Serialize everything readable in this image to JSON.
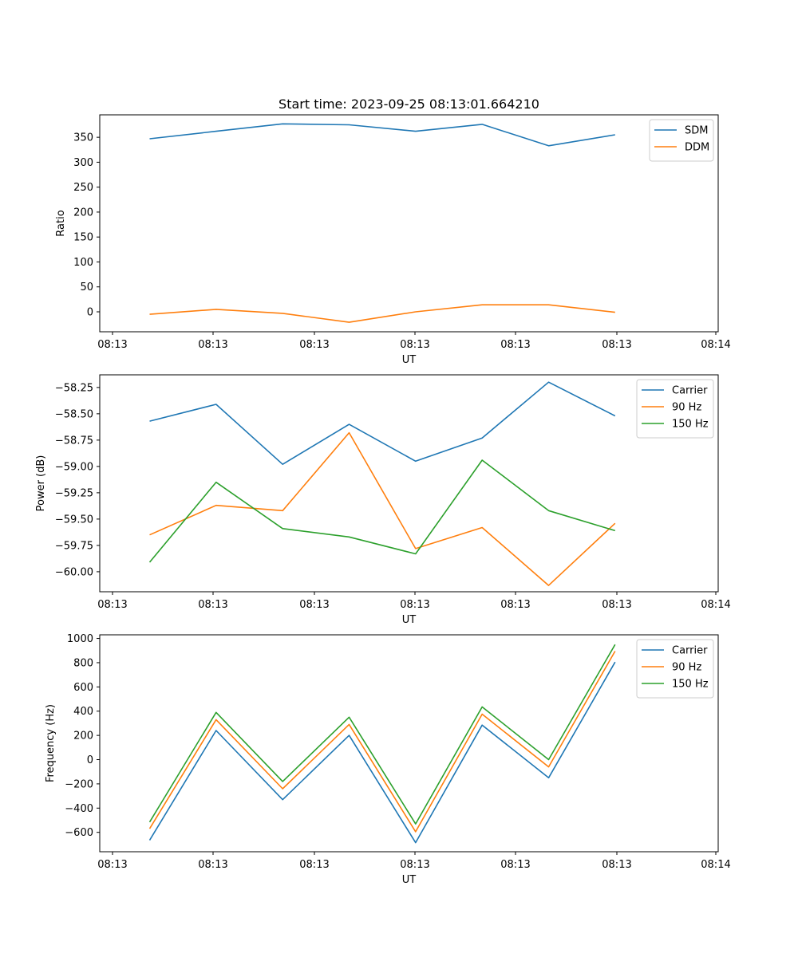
{
  "title": "Start time: 2023-09-25 08:13:01.664210",
  "colors": {
    "c1": "#1f77b4",
    "c2": "#ff7f0e",
    "c3": "#2ca02c"
  },
  "x_tick_labels": [
    "08:13",
    "08:13",
    "08:13",
    "08:13",
    "08:13",
    "08:13",
    "08:14"
  ],
  "chart_data": [
    {
      "type": "line",
      "xlabel": "UT",
      "ylabel": "Ratio",
      "x": [
        0,
        1,
        2,
        3,
        4,
        5,
        6,
        7
      ],
      "xlim": [
        -0.75,
        8.55
      ],
      "ylim": [
        -40,
        395
      ],
      "yticks": [
        0,
        50,
        100,
        150,
        200,
        250,
        300,
        350
      ],
      "series": [
        {
          "name": "SDM",
          "values": [
            347,
            362,
            377,
            375,
            362,
            376,
            333,
            355
          ]
        },
        {
          "name": "DDM",
          "values": [
            -5,
            5,
            -3,
            -21,
            0,
            14,
            14,
            -1
          ]
        }
      ]
    },
    {
      "type": "line",
      "xlabel": "UT",
      "ylabel": "Power (dB)",
      "x": [
        0,
        1,
        2,
        3,
        4,
        5,
        6,
        7
      ],
      "xlim": [
        -0.75,
        8.55
      ],
      "ylim": [
        -60.19,
        -58.13
      ],
      "yticks": [
        -60.0,
        -59.75,
        -59.5,
        -59.25,
        -59.0,
        -58.75,
        -58.5,
        -58.25
      ],
      "series": [
        {
          "name": "Carrier",
          "values": [
            -58.57,
            -58.41,
            -58.98,
            -58.6,
            -58.95,
            -58.73,
            -58.2,
            -58.52
          ]
        },
        {
          "name": "90 Hz",
          "values": [
            -59.65,
            -59.37,
            -59.42,
            -58.68,
            -59.78,
            -59.58,
            -60.13,
            -59.54
          ]
        },
        {
          "name": "150 Hz",
          "values": [
            -59.91,
            -59.15,
            -59.59,
            -59.67,
            -59.83,
            -58.94,
            -59.42,
            -59.61
          ]
        }
      ]
    },
    {
      "type": "line",
      "xlabel": "UT",
      "ylabel": "Frequency (Hz)",
      "x": [
        0,
        1,
        2,
        3,
        4,
        5,
        6,
        7
      ],
      "xlim": [
        -0.75,
        8.55
      ],
      "ylim": [
        -760,
        1030
      ],
      "yticks": [
        -600,
        -400,
        -200,
        0,
        200,
        400,
        600,
        800,
        1000
      ],
      "series": [
        {
          "name": "Carrier",
          "values": [
            -665,
            240,
            -330,
            200,
            -685,
            285,
            -150,
            805
          ]
        },
        {
          "name": "90 Hz",
          "values": [
            -570,
            330,
            -240,
            290,
            -595,
            375,
            -60,
            895
          ]
        },
        {
          "name": "150 Hz",
          "values": [
            -515,
            390,
            -180,
            350,
            -530,
            435,
            0,
            950
          ]
        }
      ]
    }
  ]
}
